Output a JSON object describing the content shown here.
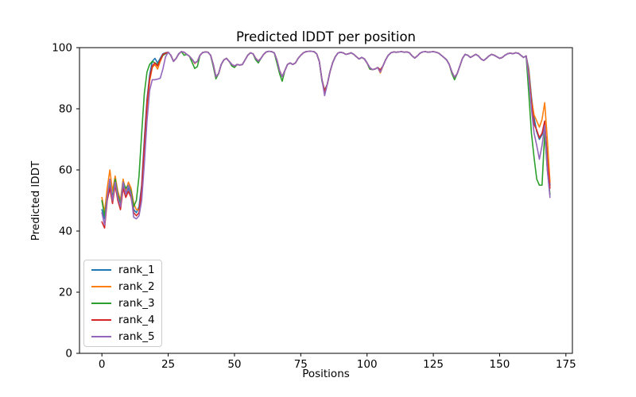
{
  "figure": {
    "background": "#ffffff",
    "title": "Predicted lDDT per position",
    "xlabel": "Positions",
    "ylabel": "Predicted lDDT"
  },
  "chart_data": {
    "type": "line",
    "title": "Predicted lDDT per position",
    "xlabel": "Positions",
    "ylabel": "Predicted lDDT",
    "xlim": [
      -8.45,
      177.45
    ],
    "ylim": [
      0,
      100
    ],
    "xticks": [
      0,
      25,
      50,
      75,
      100,
      125,
      150,
      175
    ],
    "yticks": [
      0,
      20,
      40,
      60,
      80,
      100
    ],
    "grid": false,
    "legend_position": "lower left",
    "legend_entries": [
      "rank_1",
      "rank_2",
      "rank_3",
      "rank_4",
      "rank_5"
    ],
    "series": [
      {
        "name": "rank_1",
        "color": "#1f77b4",
        "values": [
          47,
          44,
          52,
          55,
          50,
          56,
          51,
          48,
          55,
          52,
          54,
          52,
          47,
          46,
          48,
          55,
          70,
          83,
          91,
          95.5,
          96.5,
          95,
          96.5,
          98,
          98.3,
          98.5,
          97.5,
          95.5,
          96.5,
          98,
          98.7,
          98.5,
          97.8,
          97.2,
          96.2,
          95,
          95.5,
          97.5,
          98.4,
          98.6,
          98.5,
          97.5,
          94.5,
          90.5,
          91.5,
          94.5,
          96,
          96.5,
          95.5,
          94.5,
          94,
          94.5,
          94.3,
          94.5,
          96,
          97.5,
          98.3,
          98,
          96.5,
          95.6,
          96.5,
          97.8,
          98.6,
          98.8,
          98.7,
          98.3,
          96,
          92.5,
          90.5,
          92.5,
          94.5,
          95,
          94.5,
          95,
          96.5,
          97.5,
          98.3,
          98.7,
          98.8,
          98.8,
          98.7,
          98,
          95.5,
          89.5,
          86,
          88,
          92,
          95,
          97,
          98.2,
          98.5,
          98.3,
          97.8,
          98,
          98.3,
          97.8,
          97,
          96.3,
          96.8,
          96.3,
          95,
          93.5,
          92.8,
          93,
          93.5,
          92.7,
          94,
          96,
          97.5,
          98.3,
          98.6,
          98.5,
          98.6,
          98.7,
          98.5,
          98.6,
          98.3,
          97.3,
          96.6,
          97.3,
          98.2,
          98.6,
          98.7,
          98.5,
          98.6,
          98.7,
          98.5,
          98.2,
          97.5,
          96.8,
          96,
          94.5,
          92,
          90.3,
          91.5,
          94,
          96.5,
          97.8,
          97.5,
          96.8,
          97.3,
          97.8,
          97.3,
          96.3,
          95.8,
          96.5,
          97.3,
          97.8,
          97.5,
          97,
          96.5,
          96.8,
          97.5,
          98,
          98.2,
          98,
          98.3,
          98.2,
          97.5,
          96.8,
          97.3,
          93,
          84,
          77,
          72.5,
          70,
          71.5,
          74.5,
          65,
          55
        ]
      },
      {
        "name": "rank_2",
        "color": "#ff7f0e",
        "values": [
          51,
          46,
          54,
          60,
          53,
          58,
          53,
          50,
          57,
          53,
          56,
          54,
          49,
          47,
          47,
          52,
          66,
          80,
          89,
          93.5,
          94.5,
          93,
          95.5,
          97.5,
          98,
          98.5,
          97.5,
          95.5,
          96.5,
          98,
          98.7,
          98.5,
          97.8,
          97.2,
          96.2,
          94.8,
          95.5,
          97.5,
          98.4,
          98.6,
          98.5,
          97.5,
          94.5,
          90.5,
          91.5,
          94.5,
          96,
          96.5,
          95.5,
          94.5,
          94,
          94.5,
          94.3,
          94.5,
          96,
          97.5,
          98.3,
          98,
          96.5,
          95.6,
          96.5,
          97.8,
          98.6,
          98.8,
          98.7,
          98.3,
          96,
          92.5,
          90.5,
          92.5,
          94.5,
          95,
          94.5,
          95,
          96.5,
          97.5,
          98.3,
          98.7,
          98.8,
          98.8,
          98.7,
          98,
          95.5,
          89.5,
          85.5,
          88,
          92,
          95,
          97,
          98.2,
          98.5,
          98.3,
          97.8,
          98,
          98.3,
          97.8,
          97,
          96.3,
          96.8,
          96.3,
          95,
          93.5,
          92.8,
          93,
          93.5,
          91.7,
          94,
          96,
          97.5,
          98.3,
          98.6,
          98.5,
          98.6,
          98.7,
          98.5,
          98.6,
          98.3,
          97.3,
          96.6,
          97.3,
          98.2,
          98.6,
          98.7,
          98.5,
          98.6,
          98.7,
          98.5,
          98.2,
          97.5,
          96.8,
          96,
          94.5,
          92,
          90.3,
          91.5,
          94,
          96.5,
          97.8,
          97.5,
          96.8,
          97.3,
          97.8,
          97.3,
          96.3,
          95.8,
          96.5,
          97.3,
          97.8,
          97.5,
          97,
          96.5,
          96.8,
          97.5,
          98,
          98.2,
          98,
          98.3,
          98.2,
          97.5,
          96.8,
          97.3,
          92,
          83,
          78,
          76,
          74,
          76.5,
          82,
          70,
          56
        ]
      },
      {
        "name": "rank_3",
        "color": "#2ca02c",
        "values": [
          50,
          45,
          51,
          56,
          51,
          57,
          52,
          49,
          56,
          54,
          55,
          53,
          48,
          50,
          58,
          72,
          85,
          92,
          94.5,
          95.5,
          95,
          94.5,
          96,
          97.5,
          98,
          98.5,
          97.5,
          95.5,
          96.5,
          98,
          98.7,
          97.5,
          97.8,
          97.2,
          95.2,
          93.2,
          93.8,
          97.5,
          98.4,
          98.6,
          98.5,
          97.5,
          93.8,
          89.8,
          91.5,
          94.5,
          96,
          96.5,
          95.5,
          94,
          93.5,
          94.5,
          94.3,
          94.5,
          96,
          97.5,
          98.3,
          98,
          96,
          95,
          96.5,
          97.8,
          98.6,
          98.8,
          98.7,
          98.3,
          95,
          91.5,
          89,
          92.5,
          94.5,
          95,
          94.5,
          95,
          96.5,
          97.5,
          98.3,
          98.7,
          98.8,
          98.8,
          98.7,
          98,
          95.5,
          89,
          86,
          88,
          92,
          95,
          97,
          98.2,
          98.5,
          98.3,
          97.8,
          98,
          98.3,
          97.8,
          97,
          96.3,
          96.8,
          96.3,
          95,
          93,
          92.8,
          93,
          93.5,
          92.7,
          94,
          96,
          97.5,
          98.3,
          98.6,
          98.5,
          98.6,
          98.7,
          98.5,
          98.6,
          98.3,
          97.3,
          96.6,
          97.3,
          98.2,
          98.6,
          98.7,
          98.5,
          98.6,
          98.7,
          98.5,
          98.2,
          97.5,
          96.8,
          96,
          94.5,
          91.5,
          89.5,
          91.5,
          94,
          96.5,
          97.8,
          97.5,
          96.8,
          97.3,
          97.8,
          97.3,
          96.3,
          95.8,
          96.5,
          97.3,
          97.8,
          97.5,
          97,
          96.5,
          96.8,
          97.5,
          98,
          98.2,
          98,
          98.3,
          98.2,
          97.5,
          96.8,
          97.3,
          85,
          72,
          64,
          57,
          55,
          55,
          72,
          60,
          52
        ]
      },
      {
        "name": "rank_4",
        "color": "#d62728",
        "values": [
          43,
          41,
          50,
          54,
          49,
          55,
          50,
          47,
          54,
          51,
          53,
          51,
          46,
          45,
          46,
          54,
          68,
          82,
          90,
          94,
          95,
          94,
          96,
          97.8,
          98.2,
          98.5,
          97.5,
          95.5,
          96.5,
          98,
          98.7,
          98.5,
          97.8,
          97.2,
          96.2,
          95,
          95.5,
          97.5,
          98.4,
          98.6,
          98.5,
          97.5,
          94.5,
          90.5,
          91.5,
          94.5,
          96,
          96.5,
          95.5,
          94.5,
          94,
          94.5,
          94.3,
          94.5,
          96,
          97.5,
          98.3,
          98,
          96.5,
          95.6,
          96.5,
          97.8,
          98.6,
          98.8,
          98.7,
          98.3,
          96,
          92.5,
          90.5,
          92.5,
          94.5,
          95,
          94.5,
          95,
          96.5,
          97.5,
          98.3,
          98.7,
          98.8,
          98.8,
          98.7,
          98,
          95.5,
          89.5,
          85.8,
          88,
          92,
          95,
          97,
          98.2,
          98.5,
          98.3,
          97.8,
          98,
          98.3,
          97.8,
          97,
          96.3,
          96.8,
          96.3,
          95,
          93.5,
          92.8,
          93,
          93.5,
          92.7,
          94,
          96,
          97.5,
          98.3,
          98.6,
          98.5,
          98.6,
          98.7,
          98.5,
          98.6,
          98.3,
          97.3,
          96.6,
          97.3,
          98.2,
          98.6,
          98.7,
          98.5,
          98.6,
          98.7,
          98.5,
          98.2,
          97.5,
          96.8,
          96,
          94.5,
          92,
          90.3,
          91.5,
          94,
          96.5,
          97.8,
          97.5,
          96.8,
          97.3,
          97.8,
          97.3,
          96.3,
          95.8,
          96.5,
          97.3,
          97.8,
          97.5,
          97,
          96.5,
          96.8,
          97.5,
          98,
          98.2,
          98,
          98.3,
          98.2,
          97.5,
          96.8,
          97.3,
          91,
          82,
          75,
          73,
          70.5,
          72,
          76,
          63,
          54
        ]
      },
      {
        "name": "rank_5",
        "color": "#9467bd",
        "values": [
          46,
          42,
          51,
          57,
          50,
          56,
          51,
          48,
          56,
          52,
          55,
          52,
          44.5,
          44,
          45,
          50,
          62,
          76,
          86,
          89.5,
          89.5,
          89.7,
          90,
          93,
          97,
          98.5,
          97.5,
          95.5,
          96.5,
          98,
          98.7,
          98.5,
          97.8,
          97.2,
          96.2,
          95,
          95.5,
          97.5,
          98.4,
          98.6,
          98.5,
          97.5,
          94.5,
          90.5,
          91.5,
          94.5,
          96,
          96.5,
          95.5,
          94.5,
          94,
          94.5,
          94.3,
          94.5,
          96,
          97.5,
          98.3,
          98,
          96.5,
          95.6,
          96.5,
          97.8,
          98.6,
          98.8,
          98.7,
          98.3,
          96,
          92.5,
          90.5,
          92.5,
          94.5,
          95,
          94.5,
          95,
          96.5,
          97.5,
          98.3,
          98.7,
          98.8,
          98.8,
          98.7,
          98,
          95.5,
          89.5,
          84.3,
          88,
          92,
          95,
          97,
          98.2,
          98.5,
          98.3,
          97.8,
          98,
          98.3,
          97.8,
          97,
          96.3,
          96.8,
          96.3,
          95,
          93.5,
          92.8,
          93,
          93.5,
          92,
          94,
          96,
          97.5,
          98.3,
          98.6,
          98.5,
          98.6,
          98.7,
          98.5,
          98.6,
          98.3,
          97.3,
          96.6,
          97.3,
          98.2,
          98.6,
          98.7,
          98.5,
          98.6,
          98.7,
          98.5,
          98.2,
          97.5,
          96.8,
          96,
          94.5,
          92,
          90.3,
          91.5,
          94,
          96.5,
          97.8,
          97.5,
          96.8,
          97.3,
          97.8,
          97.3,
          96.3,
          95.8,
          96.5,
          97.3,
          97.8,
          97.5,
          97,
          96.5,
          96.8,
          97.5,
          98,
          98.2,
          98,
          98.3,
          98.2,
          97.5,
          96.8,
          97.3,
          90,
          80,
          72,
          68,
          63.5,
          68,
          74.5,
          60,
          51
        ]
      }
    ]
  }
}
